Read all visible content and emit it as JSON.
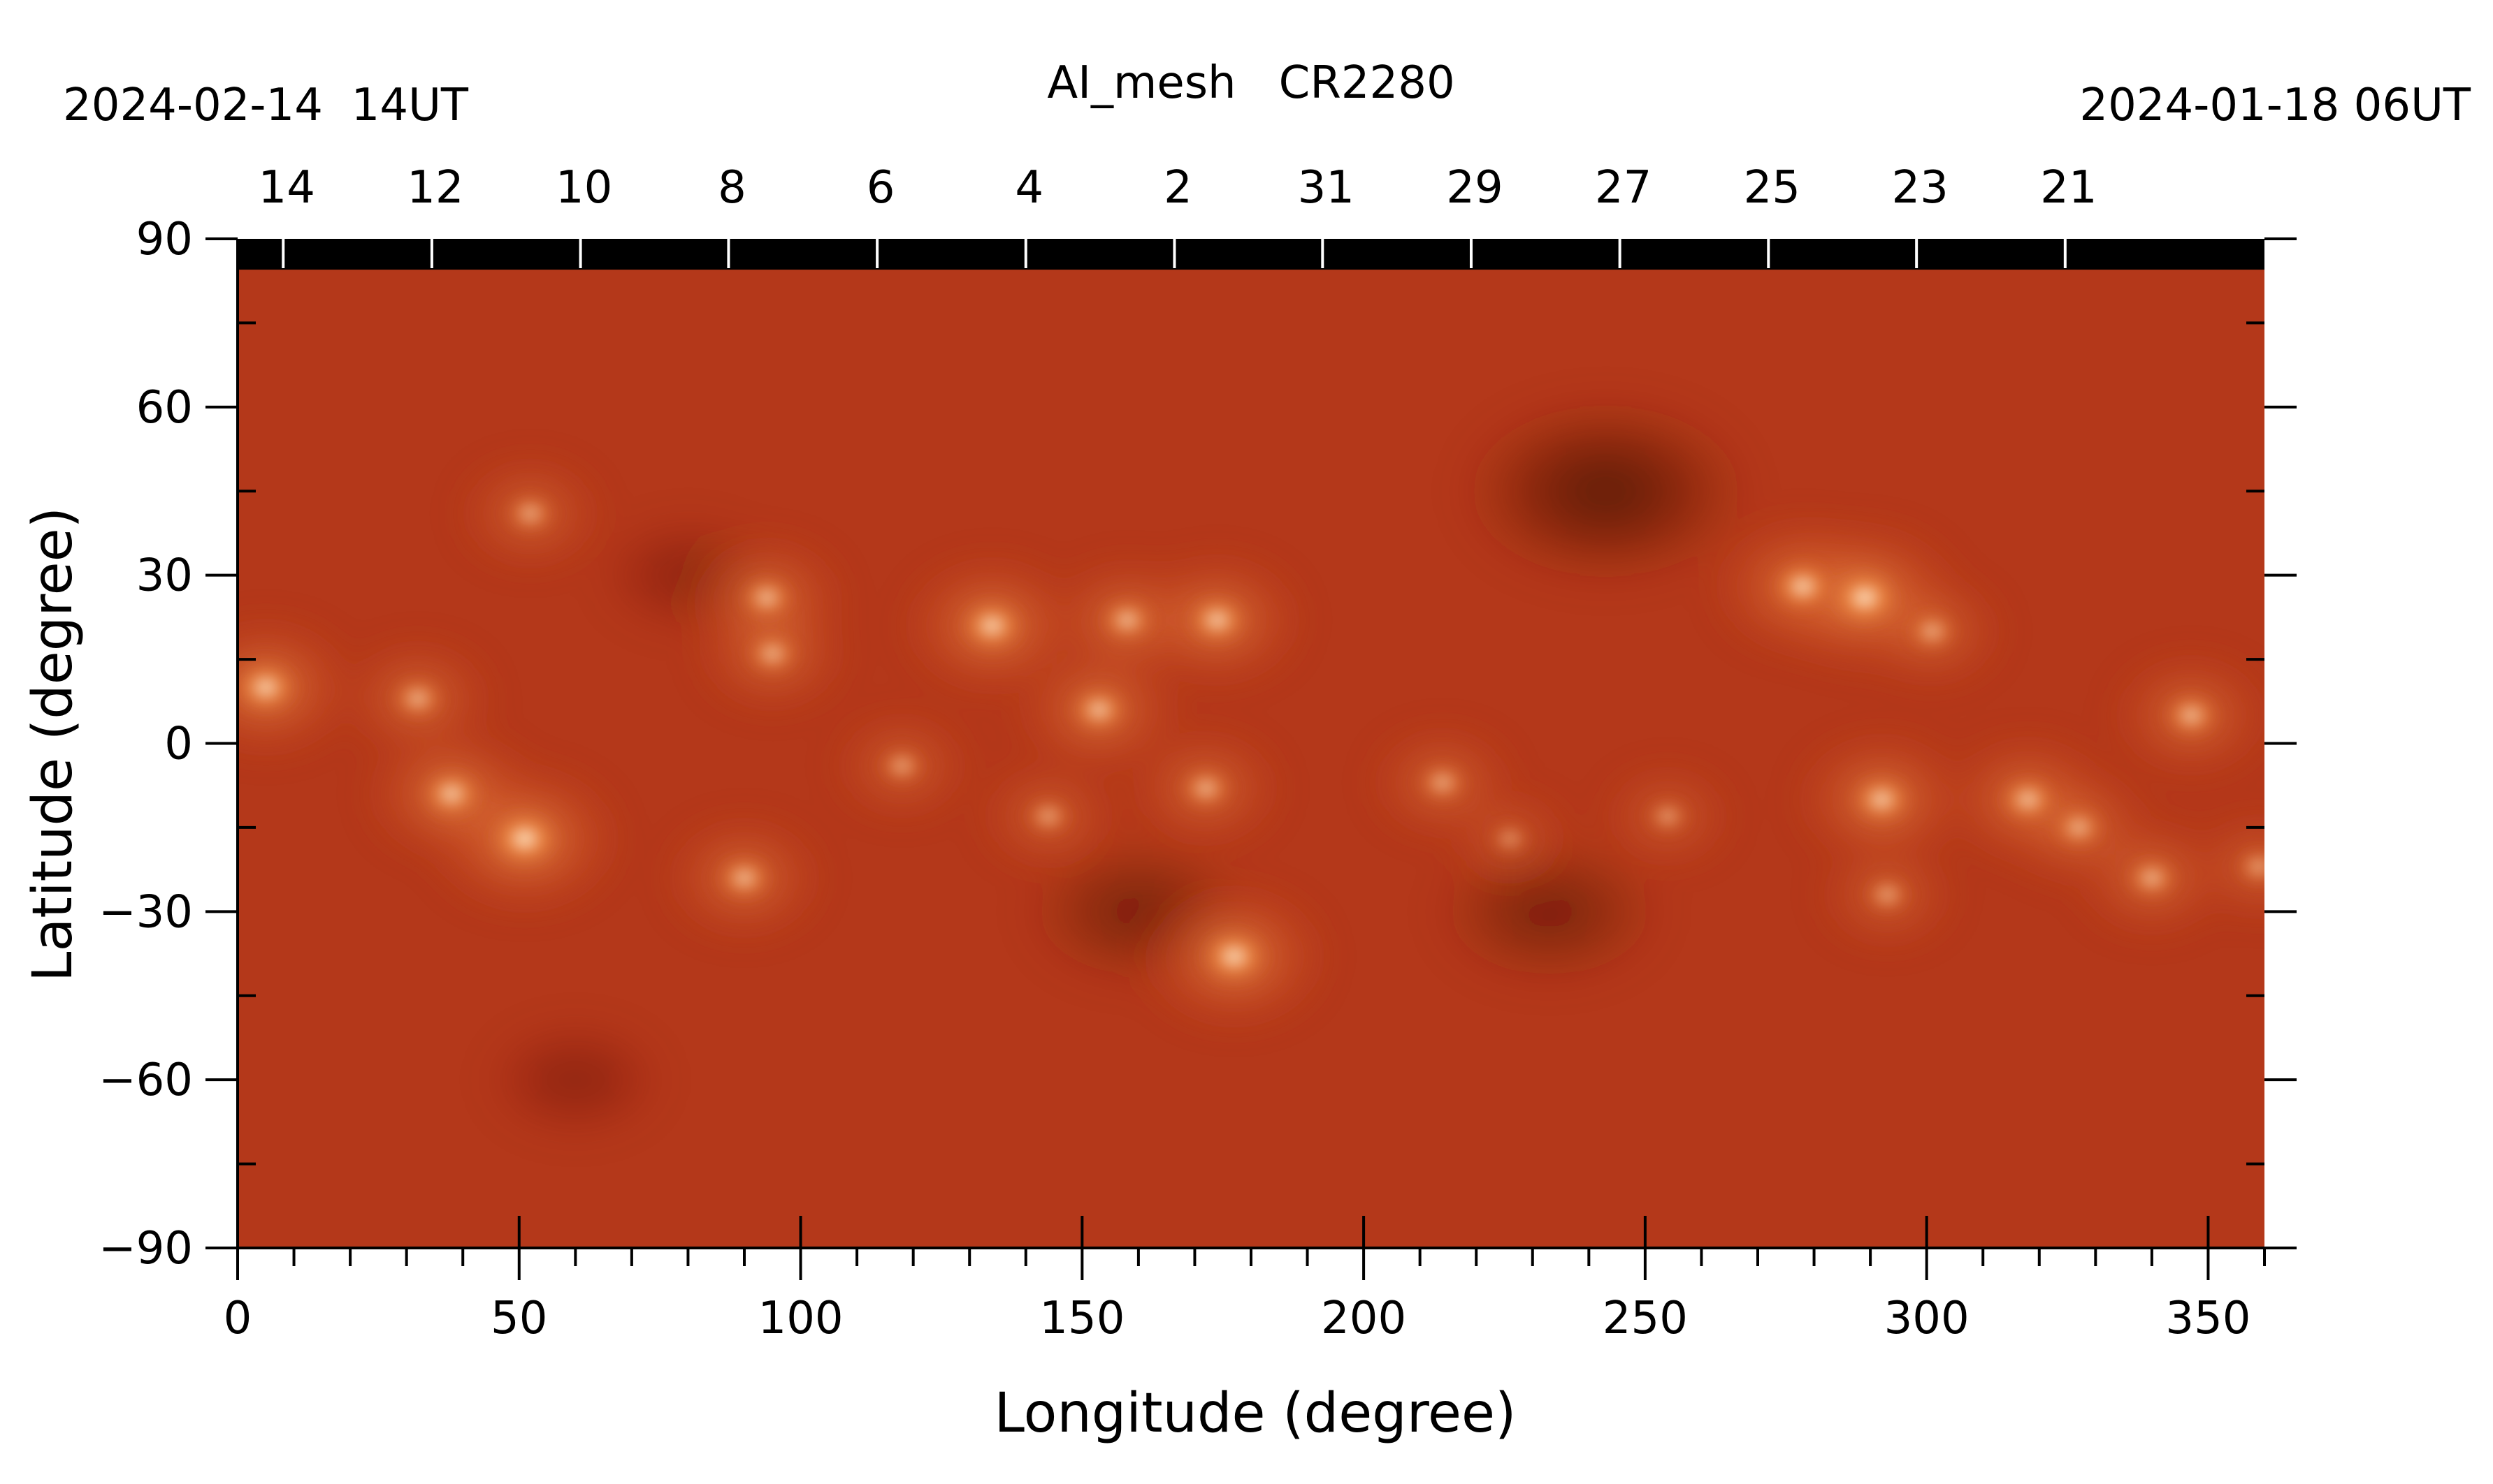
{
  "chart_data": {
    "type": "heatmap",
    "title": "AI_mesh   CR2280",
    "start_time": "2024-02-14  14UT",
    "end_time": "2024-01-18 06UT",
    "xlabel": "Longitude (degree)",
    "ylabel": "Latitude (degree)",
    "xlim": [
      0,
      360
    ],
    "ylim": [
      -90,
      90
    ],
    "x_ticks": [
      0,
      50,
      100,
      150,
      200,
      250,
      300,
      350
    ],
    "x_minor_step": 10,
    "y_ticks": [
      90,
      60,
      30,
      0,
      -30,
      -60,
      -90
    ],
    "y_minor_step": 15,
    "y_tick_labels": [
      "90",
      "60",
      "30",
      "0",
      "−30",
      "−60",
      "−90"
    ],
    "top_axis": {
      "labels": [
        "14",
        "12",
        "10",
        "8",
        "6",
        "4",
        "2",
        "31",
        "29",
        "27",
        "25",
        "23",
        "21"
      ],
      "longitudes": [
        8.1,
        34.5,
        60.9,
        87.2,
        113.6,
        140.0,
        166.4,
        192.7,
        219.1,
        245.5,
        271.9,
        298.2,
        324.6
      ]
    },
    "colormap": [
      "#2a0800",
      "#5a1606",
      "#8c2a10",
      "#b53a1a",
      "#d35a28",
      "#ef8a40",
      "#fbbc70",
      "#fff2dc"
    ],
    "background_color": "#b4381a",
    "polar_mask": {
      "color": "#000000",
      "lat_from": 84.5,
      "lat_to": 90
    },
    "bright_regions": [
      {
        "lon": 51,
        "lat": -17,
        "intensity": 1.0
      },
      {
        "lon": 38,
        "lat": -9,
        "intensity": 0.85
      },
      {
        "lon": 90,
        "lat": -24,
        "intensity": 0.75
      },
      {
        "lon": 5,
        "lat": 10,
        "intensity": 0.9
      },
      {
        "lon": 32,
        "lat": 8,
        "intensity": 0.7
      },
      {
        "lon": 94,
        "lat": 26,
        "intensity": 0.75
      },
      {
        "lon": 95,
        "lat": 16,
        "intensity": 0.7
      },
      {
        "lon": 52,
        "lat": 41,
        "intensity": 0.65
      },
      {
        "lon": 134,
        "lat": 21,
        "intensity": 0.9
      },
      {
        "lon": 153,
        "lat": 6,
        "intensity": 0.8
      },
      {
        "lon": 158,
        "lat": 22,
        "intensity": 0.75
      },
      {
        "lon": 174,
        "lat": 22,
        "intensity": 0.85
      },
      {
        "lon": 118,
        "lat": -4,
        "intensity": 0.6
      },
      {
        "lon": 172,
        "lat": -8,
        "intensity": 0.7
      },
      {
        "lon": 177,
        "lat": -38,
        "intensity": 0.95
      },
      {
        "lon": 144,
        "lat": -13,
        "intensity": 0.6
      },
      {
        "lon": 214,
        "lat": -7,
        "intensity": 0.65
      },
      {
        "lon": 226,
        "lat": -17,
        "intensity": 0.5
      },
      {
        "lon": 254,
        "lat": -13,
        "intensity": 0.55
      },
      {
        "lon": 278,
        "lat": 28,
        "intensity": 0.9
      },
      {
        "lon": 289,
        "lat": 26,
        "intensity": 1.0
      },
      {
        "lon": 301,
        "lat": 20,
        "intensity": 0.65
      },
      {
        "lon": 347,
        "lat": 5,
        "intensity": 0.75
      },
      {
        "lon": 292,
        "lat": -10,
        "intensity": 0.85
      },
      {
        "lon": 318,
        "lat": -10,
        "intensity": 0.8
      },
      {
        "lon": 327,
        "lat": -15,
        "intensity": 0.7
      },
      {
        "lon": 340,
        "lat": -24,
        "intensity": 0.7
      },
      {
        "lon": 293,
        "lat": -27,
        "intensity": 0.6
      },
      {
        "lon": 359,
        "lat": -22,
        "intensity": 0.6
      }
    ],
    "dark_regions": [
      {
        "lon": 243,
        "lat": 45,
        "intensity": 0.85
      },
      {
        "lon": 233,
        "lat": -30,
        "intensity": 0.6
      },
      {
        "lon": 160,
        "lat": -30,
        "intensity": 0.6
      },
      {
        "lon": 80,
        "lat": 30,
        "intensity": 0.4
      },
      {
        "lon": 60,
        "lat": -60,
        "intensity": 0.4
      }
    ]
  }
}
